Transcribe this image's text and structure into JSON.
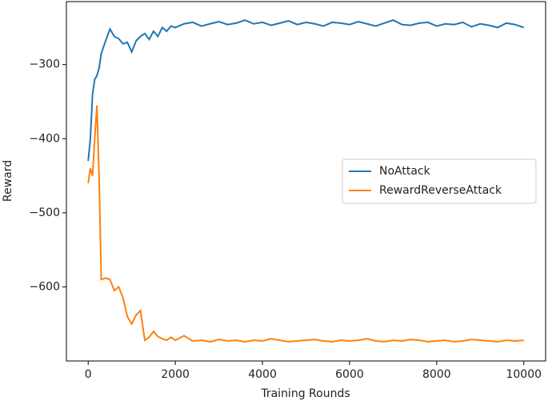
{
  "chart_data": {
    "type": "line",
    "x": [
      0,
      50,
      100,
      150,
      200,
      250,
      300,
      400,
      500,
      600,
      700,
      800,
      900,
      1000,
      1100,
      1200,
      1300,
      1400,
      1500,
      1600,
      1700,
      1800,
      1900,
      2000,
      2200,
      2400,
      2600,
      2800,
      3000,
      3200,
      3400,
      3600,
      3800,
      4000,
      4200,
      4400,
      4600,
      4800,
      5000,
      5200,
      5400,
      5600,
      5800,
      6000,
      6200,
      6400,
      6600,
      6800,
      7000,
      7200,
      7400,
      7600,
      7800,
      8000,
      8200,
      8400,
      8600,
      8800,
      9000,
      9200,
      9400,
      9600,
      9800,
      10000
    ],
    "series": [
      {
        "name": "NoAttack",
        "color": "#1f77b4",
        "values": [
          -430,
          -400,
          -340,
          -320,
          -315,
          -305,
          -285,
          -268,
          -252,
          -262,
          -265,
          -272,
          -270,
          -283,
          -268,
          -262,
          -258,
          -266,
          -255,
          -262,
          -250,
          -255,
          -248,
          -250,
          -245,
          -243,
          -248,
          -245,
          -242,
          -246,
          -244,
          -240,
          -245,
          -243,
          -247,
          -244,
          -241,
          -246,
          -243,
          -245,
          -248,
          -243,
          -244,
          -246,
          -242,
          -245,
          -248,
          -244,
          -240,
          -246,
          -247,
          -244,
          -243,
          -248,
          -245,
          -246,
          -243,
          -249,
          -245,
          -247,
          -250,
          -244,
          -246,
          -250
        ]
      },
      {
        "name": "RewardReverseAttack",
        "color": "#ff7f0e",
        "values": [
          -460,
          -440,
          -450,
          -400,
          -355,
          -450,
          -590,
          -588,
          -590,
          -605,
          -600,
          -615,
          -640,
          -650,
          -638,
          -632,
          -672,
          -668,
          -660,
          -667,
          -670,
          -672,
          -668,
          -672,
          -666,
          -673,
          -672,
          -674,
          -671,
          -673,
          -672,
          -674,
          -672,
          -673,
          -670,
          -672,
          -674,
          -673,
          -672,
          -671,
          -673,
          -674,
          -672,
          -673,
          -672,
          -670,
          -673,
          -674,
          -672,
          -673,
          -671,
          -672,
          -674,
          -673,
          -672,
          -674,
          -673,
          -671,
          -672,
          -673,
          -674,
          -672,
          -673,
          -672
        ]
      }
    ],
    "xlabel": "Training Rounds",
    "ylabel": "Reward",
    "xlim": [
      -500,
      10500
    ],
    "ylim": [
      -700,
      -215
    ],
    "xticks": [
      0,
      2000,
      4000,
      6000,
      8000,
      10000
    ],
    "yticks": [
      {
        "value": -300,
        "label": "−300"
      },
      {
        "value": -400,
        "label": "−400"
      },
      {
        "value": -500,
        "label": "−500"
      },
      {
        "value": -600,
        "label": "−600"
      }
    ],
    "legend": "center right"
  }
}
